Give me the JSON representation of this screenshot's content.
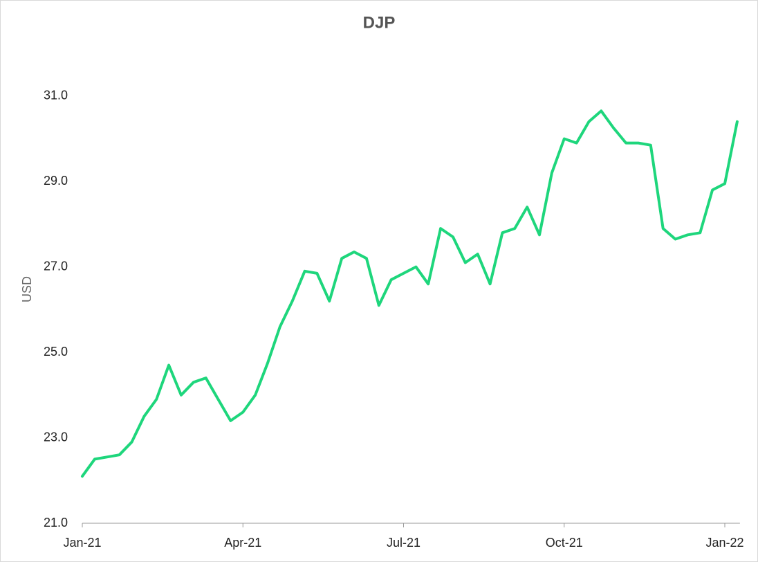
{
  "chart_data": {
    "type": "line",
    "title": "DJP",
    "y_label": "USD",
    "categories": [
      "Jan-21",
      null,
      null,
      null,
      null,
      null,
      null,
      null,
      null,
      null,
      null,
      null,
      null,
      "Apr-21",
      null,
      null,
      null,
      null,
      null,
      null,
      null,
      null,
      null,
      null,
      null,
      null,
      "Jul-21",
      null,
      null,
      null,
      null,
      null,
      null,
      null,
      null,
      null,
      null,
      null,
      null,
      "Oct-21",
      null,
      null,
      null,
      null,
      null,
      null,
      null,
      null,
      null,
      null,
      null,
      null,
      "Jan-22",
      null
    ],
    "series": [
      {
        "name": "DJP",
        "color": "#1ed67c",
        "values": [
          22.1,
          22.5,
          22.55,
          22.6,
          22.9,
          23.5,
          23.9,
          24.7,
          24.0,
          24.3,
          24.4,
          23.9,
          23.4,
          23.6,
          24.0,
          24.75,
          25.6,
          26.2,
          26.9,
          26.85,
          26.2,
          27.2,
          27.35,
          27.2,
          26.1,
          26.7,
          26.85,
          27.0,
          26.6,
          27.9,
          27.7,
          27.1,
          27.3,
          26.6,
          27.8,
          27.9,
          28.4,
          27.75,
          29.2,
          30.0,
          29.9,
          30.4,
          30.65,
          30.25,
          29.9,
          29.9,
          29.85,
          27.9,
          27.65,
          27.75,
          27.8,
          28.8,
          28.95,
          30.4
        ]
      }
    ],
    "ylim": [
      21,
      32
    ],
    "yticks": [
      {
        "value": 21,
        "label": "21.0"
      },
      {
        "value": 23,
        "label": "23.0"
      },
      {
        "value": 25,
        "label": "25.0"
      },
      {
        "value": 27,
        "label": "27.0"
      },
      {
        "value": 29,
        "label": "29.0"
      },
      {
        "value": 31,
        "label": "31.0"
      }
    ],
    "grid": false
  }
}
